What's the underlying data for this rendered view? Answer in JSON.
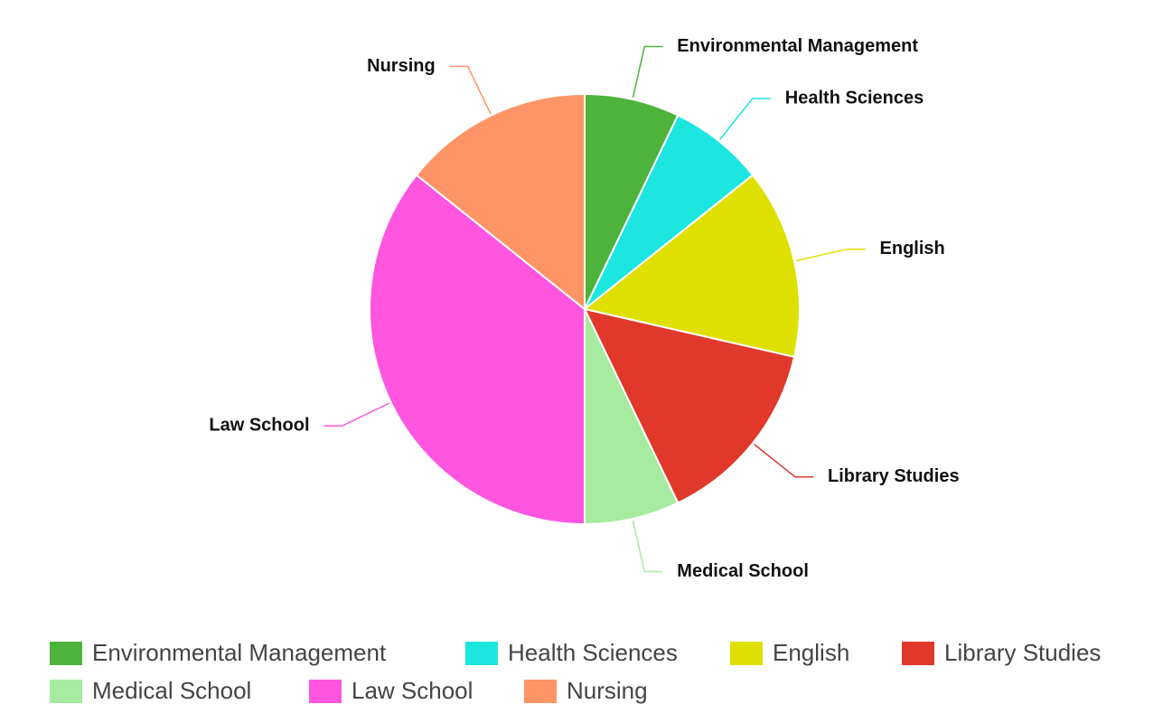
{
  "chart_data": {
    "type": "pie",
    "categories": [
      "Environmental Management",
      "Health Sciences",
      "English",
      "Library Studies",
      "Medical School",
      "Law School",
      "Nursing"
    ],
    "values": [
      1,
      1,
      2,
      2,
      1,
      5,
      2
    ],
    "colors": [
      "#4db33d",
      "#1de5e0",
      "#dfe000",
      "#e0382b",
      "#a6eba0",
      "#ff55df",
      "#ff9466"
    ],
    "legend": "bottom"
  }
}
